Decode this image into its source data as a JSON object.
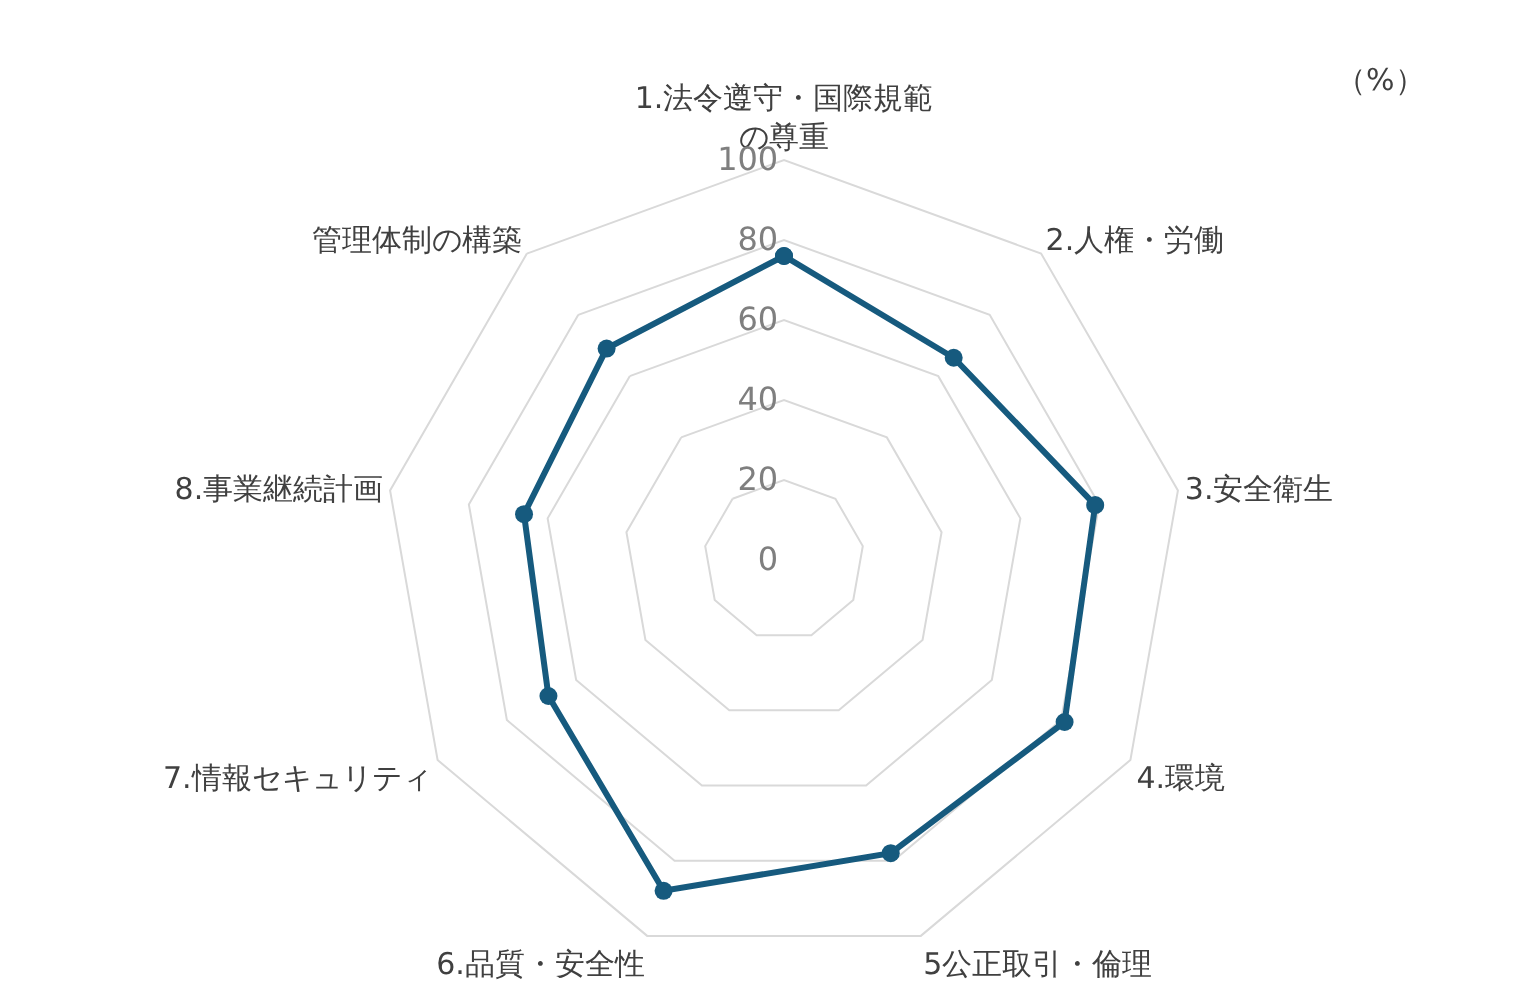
{
  "chart_data": {
    "type": "radar",
    "categories": [
      "1.法令遵守・国際規範の尊重",
      "2.人権・労働",
      "3.安全衛生",
      "4.環境",
      "5公正取引・倫理",
      "6.品質・安全性",
      "7.情報セキュリティ",
      "8.事業継続計画",
      "管理体制の構築"
    ],
    "series": [
      {
        "color": "#165a7e",
        "values": [
          76,
          66,
          79,
          81,
          78,
          88,
          68,
          66,
          69
        ]
      }
    ],
    "ylim": [
      0,
      100
    ],
    "yticks": [
      0,
      20,
      40,
      60,
      80,
      100
    ],
    "annotations": [
      "（%）"
    ],
    "grid": true,
    "marker": "circle",
    "line_style": "solid"
  }
}
